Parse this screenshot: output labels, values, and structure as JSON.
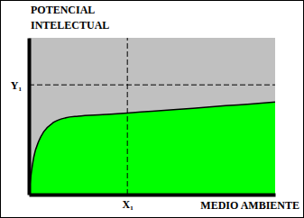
{
  "chart_data": {
    "type": "area",
    "xlabel": "MEDIO AMBIENTE",
    "ylabel": "POTENCIAL INTELECTUAL",
    "x": [
      0,
      1,
      2,
      4,
      6,
      10,
      15,
      20,
      30,
      40,
      50,
      60,
      70,
      80,
      90,
      100
    ],
    "series": [
      {
        "color": "#00ff00",
        "values": [
          0,
          14,
          24,
          34,
          40,
          46,
          49,
          50,
          51,
          52,
          53.2,
          54.3,
          55.5,
          56.7,
          57.8,
          59
        ]
      }
    ],
    "xlim": [
      0,
      100
    ],
    "ylim": [
      0,
      100
    ],
    "xticks": [
      {
        "value": 40,
        "label": "X₁"
      }
    ],
    "yticks": [
      {
        "value": 70,
        "label": "Y₁"
      }
    ],
    "grid": true,
    "tick_labels": true
  }
}
